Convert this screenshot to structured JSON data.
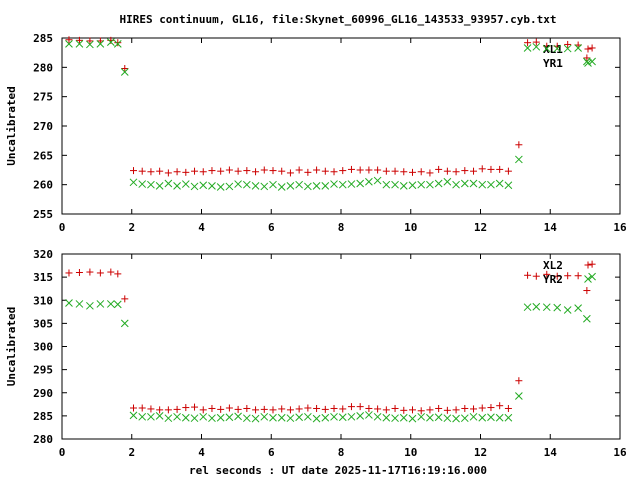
{
  "title": "HIRES continuum, GL16, file:Skynet_60996_GL16_143533_93957.cyb.txt",
  "xlabel": "rel seconds : UT date 2025-11-17T16:19:16.000",
  "colors": {
    "L": "#cc0000",
    "R": "#22aa22"
  },
  "chart_data": [
    {
      "type": "scatter",
      "ylabel": "Uncalibrated",
      "xlim": [
        0,
        16
      ],
      "ylim": [
        255,
        285
      ],
      "xticks": [
        0,
        2,
        4,
        6,
        8,
        10,
        12,
        14,
        16
      ],
      "yticks": [
        255,
        260,
        265,
        270,
        275,
        280,
        285
      ],
      "series": [
        {
          "name": "XL1",
          "marker": "plus",
          "points": [
            [
              0.2,
              284.7
            ],
            [
              0.5,
              284.6
            ],
            [
              0.8,
              284.5
            ],
            [
              1.1,
              284.5
            ],
            [
              1.4,
              284.6
            ],
            [
              1.6,
              284.2
            ],
            [
              1.8,
              279.8
            ],
            [
              2.05,
              262.4
            ],
            [
              2.3,
              262.3
            ],
            [
              2.55,
              262.2
            ],
            [
              2.8,
              262.3
            ],
            [
              3.05,
              262.0
            ],
            [
              3.3,
              262.2
            ],
            [
              3.55,
              262.1
            ],
            [
              3.8,
              262.3
            ],
            [
              4.05,
              262.2
            ],
            [
              4.3,
              262.4
            ],
            [
              4.55,
              262.3
            ],
            [
              4.8,
              262.5
            ],
            [
              5.05,
              262.3
            ],
            [
              5.3,
              262.4
            ],
            [
              5.55,
              262.2
            ],
            [
              5.8,
              262.5
            ],
            [
              6.05,
              262.4
            ],
            [
              6.3,
              262.3
            ],
            [
              6.55,
              262.0
            ],
            [
              6.8,
              262.5
            ],
            [
              7.05,
              262.1
            ],
            [
              7.3,
              262.5
            ],
            [
              7.55,
              262.3
            ],
            [
              7.8,
              262.2
            ],
            [
              8.05,
              262.4
            ],
            [
              8.3,
              262.6
            ],
            [
              8.55,
              262.5
            ],
            [
              8.8,
              262.5
            ],
            [
              9.05,
              262.5
            ],
            [
              9.3,
              262.3
            ],
            [
              9.55,
              262.3
            ],
            [
              9.8,
              262.2
            ],
            [
              10.05,
              262.1
            ],
            [
              10.3,
              262.2
            ],
            [
              10.55,
              262.0
            ],
            [
              10.8,
              262.6
            ],
            [
              11.05,
              262.3
            ],
            [
              11.3,
              262.2
            ],
            [
              11.55,
              262.4
            ],
            [
              11.8,
              262.3
            ],
            [
              12.05,
              262.7
            ],
            [
              12.3,
              262.6
            ],
            [
              12.55,
              262.6
            ],
            [
              12.8,
              262.3
            ],
            [
              13.1,
              266.8
            ],
            [
              13.35,
              284.2
            ],
            [
              13.6,
              284.3
            ],
            [
              13.9,
              283.6
            ],
            [
              14.2,
              283.6
            ],
            [
              14.5,
              283.9
            ],
            [
              14.8,
              283.8
            ],
            [
              15.05,
              281.6
            ],
            [
              15.2,
              283.3
            ]
          ]
        },
        {
          "name": "YR1",
          "marker": "cross",
          "points": [
            [
              0.2,
              284.0
            ],
            [
              0.5,
              284.0
            ],
            [
              0.8,
              283.9
            ],
            [
              1.1,
              284.0
            ],
            [
              1.4,
              284.3
            ],
            [
              1.6,
              284.0
            ],
            [
              1.8,
              279.2
            ],
            [
              2.05,
              260.4
            ],
            [
              2.3,
              260.1
            ],
            [
              2.55,
              260.0
            ],
            [
              2.8,
              259.8
            ],
            [
              3.05,
              260.2
            ],
            [
              3.3,
              259.8
            ],
            [
              3.55,
              260.1
            ],
            [
              3.8,
              259.7
            ],
            [
              4.05,
              259.9
            ],
            [
              4.3,
              259.8
            ],
            [
              4.55,
              259.6
            ],
            [
              4.8,
              259.7
            ],
            [
              5.05,
              260.1
            ],
            [
              5.3,
              260.0
            ],
            [
              5.55,
              259.8
            ],
            [
              5.8,
              259.7
            ],
            [
              6.05,
              260.0
            ],
            [
              6.3,
              259.6
            ],
            [
              6.55,
              259.8
            ],
            [
              6.8,
              260.0
            ],
            [
              7.05,
              259.7
            ],
            [
              7.3,
              259.8
            ],
            [
              7.55,
              259.8
            ],
            [
              7.8,
              260.1
            ],
            [
              8.05,
              260.0
            ],
            [
              8.3,
              260.1
            ],
            [
              8.55,
              260.2
            ],
            [
              8.8,
              260.5
            ],
            [
              9.05,
              260.7
            ],
            [
              9.3,
              260.0
            ],
            [
              9.55,
              260.0
            ],
            [
              9.8,
              259.8
            ],
            [
              10.05,
              259.9
            ],
            [
              10.3,
              260.0
            ],
            [
              10.55,
              260.0
            ],
            [
              10.8,
              260.2
            ],
            [
              11.05,
              260.5
            ],
            [
              11.3,
              260.0
            ],
            [
              11.55,
              260.2
            ],
            [
              11.8,
              260.2
            ],
            [
              12.05,
              260.0
            ],
            [
              12.3,
              260.0
            ],
            [
              12.55,
              260.2
            ],
            [
              12.8,
              259.9
            ],
            [
              13.1,
              264.3
            ],
            [
              13.35,
              283.3
            ],
            [
              13.6,
              283.5
            ],
            [
              13.9,
              283.2
            ],
            [
              14.2,
              283.2
            ],
            [
              14.5,
              283.2
            ],
            [
              14.8,
              283.3
            ],
            [
              15.05,
              281.0
            ],
            [
              15.2,
              281.0
            ]
          ]
        }
      ]
    },
    {
      "type": "scatter",
      "ylabel": "Uncalibrated",
      "xlim": [
        0,
        16
      ],
      "ylim": [
        280,
        320
      ],
      "xticks": [
        0,
        2,
        4,
        6,
        8,
        10,
        12,
        14,
        16
      ],
      "yticks": [
        280,
        285,
        290,
        295,
        300,
        305,
        310,
        315,
        320
      ],
      "series": [
        {
          "name": "XL2",
          "marker": "plus",
          "points": [
            [
              0.2,
              315.9
            ],
            [
              0.5,
              316.0
            ],
            [
              0.8,
              316.1
            ],
            [
              1.1,
              315.9
            ],
            [
              1.4,
              316.1
            ],
            [
              1.6,
              315.7
            ],
            [
              1.8,
              310.3
            ],
            [
              2.05,
              286.7
            ],
            [
              2.3,
              286.7
            ],
            [
              2.55,
              286.5
            ],
            [
              2.8,
              286.3
            ],
            [
              3.05,
              286.3
            ],
            [
              3.3,
              286.4
            ],
            [
              3.55,
              286.8
            ],
            [
              3.8,
              286.9
            ],
            [
              4.05,
              286.3
            ],
            [
              4.3,
              286.6
            ],
            [
              4.55,
              286.4
            ],
            [
              4.8,
              286.7
            ],
            [
              5.05,
              286.4
            ],
            [
              5.3,
              286.6
            ],
            [
              5.55,
              286.3
            ],
            [
              5.8,
              286.4
            ],
            [
              6.05,
              286.3
            ],
            [
              6.3,
              286.5
            ],
            [
              6.55,
              286.3
            ],
            [
              6.8,
              286.5
            ],
            [
              7.05,
              286.7
            ],
            [
              7.3,
              286.6
            ],
            [
              7.55,
              286.4
            ],
            [
              7.8,
              286.6
            ],
            [
              8.05,
              286.5
            ],
            [
              8.3,
              287.0
            ],
            [
              8.55,
              287.0
            ],
            [
              8.8,
              286.6
            ],
            [
              9.05,
              286.5
            ],
            [
              9.3,
              286.3
            ],
            [
              9.55,
              286.6
            ],
            [
              9.8,
              286.2
            ],
            [
              10.05,
              286.3
            ],
            [
              10.3,
              286.1
            ],
            [
              10.55,
              286.3
            ],
            [
              10.8,
              286.6
            ],
            [
              11.05,
              286.2
            ],
            [
              11.3,
              286.3
            ],
            [
              11.55,
              286.6
            ],
            [
              11.8,
              286.5
            ],
            [
              12.05,
              286.7
            ],
            [
              12.3,
              286.8
            ],
            [
              12.55,
              287.2
            ],
            [
              12.8,
              286.6
            ],
            [
              13.1,
              292.6
            ],
            [
              13.35,
              315.4
            ],
            [
              13.6,
              315.2
            ],
            [
              13.9,
              315.6
            ],
            [
              14.2,
              315.2
            ],
            [
              14.5,
              315.3
            ],
            [
              14.8,
              315.3
            ],
            [
              15.05,
              312.1
            ],
            [
              15.2,
              317.8
            ]
          ]
        },
        {
          "name": "YR2",
          "marker": "cross",
          "points": [
            [
              0.2,
              309.4
            ],
            [
              0.5,
              309.2
            ],
            [
              0.8,
              308.8
            ],
            [
              1.1,
              309.2
            ],
            [
              1.4,
              309.2
            ],
            [
              1.6,
              309.1
            ],
            [
              1.8,
              305.0
            ],
            [
              2.05,
              285.1
            ],
            [
              2.3,
              284.8
            ],
            [
              2.55,
              284.8
            ],
            [
              2.8,
              285.0
            ],
            [
              3.05,
              284.5
            ],
            [
              3.3,
              284.8
            ],
            [
              3.55,
              284.6
            ],
            [
              3.8,
              284.5
            ],
            [
              4.05,
              284.8
            ],
            [
              4.3,
              284.5
            ],
            [
              4.55,
              284.6
            ],
            [
              4.8,
              284.7
            ],
            [
              5.05,
              284.9
            ],
            [
              5.3,
              284.5
            ],
            [
              5.55,
              284.4
            ],
            [
              5.8,
              284.8
            ],
            [
              6.05,
              284.6
            ],
            [
              6.3,
              284.6
            ],
            [
              6.55,
              284.5
            ],
            [
              6.8,
              284.7
            ],
            [
              7.05,
              284.8
            ],
            [
              7.3,
              284.4
            ],
            [
              7.55,
              284.6
            ],
            [
              7.8,
              284.8
            ],
            [
              8.05,
              284.7
            ],
            [
              8.3,
              284.8
            ],
            [
              8.55,
              285.0
            ],
            [
              8.8,
              285.2
            ],
            [
              9.05,
              284.8
            ],
            [
              9.3,
              284.6
            ],
            [
              9.55,
              284.5
            ],
            [
              9.8,
              284.6
            ],
            [
              10.05,
              284.4
            ],
            [
              10.3,
              284.8
            ],
            [
              10.55,
              284.6
            ],
            [
              10.8,
              284.7
            ],
            [
              11.05,
              284.5
            ],
            [
              11.3,
              284.4
            ],
            [
              11.55,
              284.5
            ],
            [
              11.8,
              284.8
            ],
            [
              12.05,
              284.6
            ],
            [
              12.3,
              284.7
            ],
            [
              12.55,
              284.6
            ],
            [
              12.8,
              284.6
            ],
            [
              13.1,
              289.3
            ],
            [
              13.35,
              308.5
            ],
            [
              13.6,
              308.6
            ],
            [
              13.9,
              308.5
            ],
            [
              14.2,
              308.4
            ],
            [
              14.5,
              307.9
            ],
            [
              14.8,
              308.3
            ],
            [
              15.05,
              306.0
            ],
            [
              15.2,
              315.1
            ]
          ]
        }
      ]
    }
  ]
}
